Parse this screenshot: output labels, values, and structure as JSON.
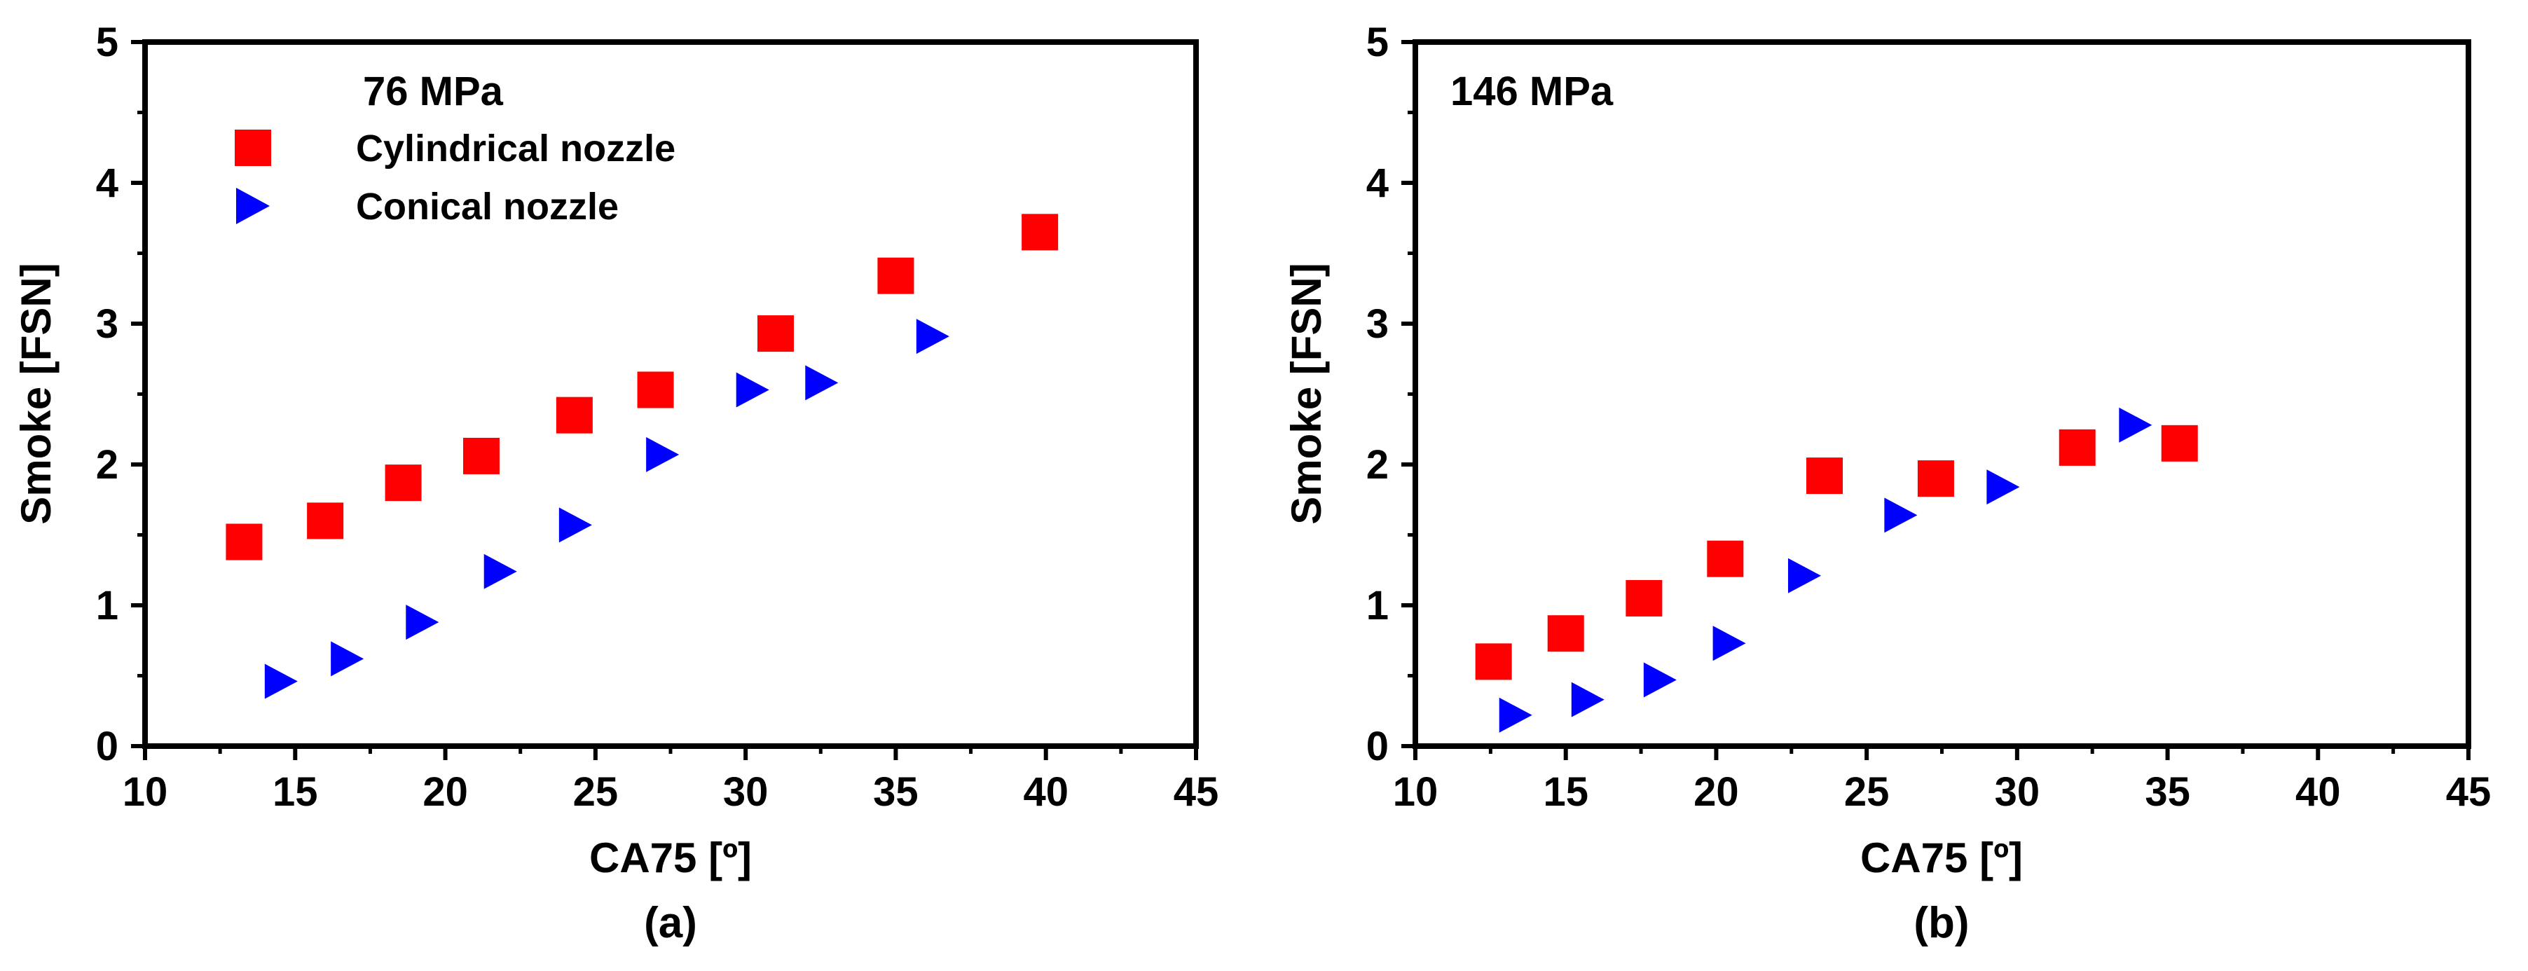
{
  "chart_data": [
    {
      "type": "scatter",
      "panel_label": "(a)",
      "title": "76 MPa",
      "xlabel": "CA75  [º]",
      "ylabel": "Smoke [FSN]",
      "xlim": [
        10,
        45
      ],
      "ylim": [
        0,
        5
      ],
      "xticks": [
        "10",
        "15",
        "20",
        "25",
        "30",
        "35",
        "40",
        "45"
      ],
      "yticks": [
        "0",
        "1",
        "2",
        "3",
        "4",
        "5"
      ],
      "legend": {
        "placement": "top-left",
        "entries": [
          "Cylindrical nozzle",
          "Conical nozzle"
        ]
      },
      "series": [
        {
          "name": "Cylindrical nozzle",
          "marker": "square",
          "color": "#ff0000",
          "x": [
            13.3,
            16.0,
            18.6,
            21.2,
            24.3,
            27.0,
            31.0,
            35.0,
            39.8
          ],
          "y": [
            1.45,
            1.6,
            1.87,
            2.06,
            2.35,
            2.53,
            2.93,
            3.34,
            3.65
          ]
        },
        {
          "name": "Conical nozzle",
          "marker": "triangle-right",
          "color": "#0000ff",
          "x": [
            14.5,
            16.7,
            19.2,
            21.8,
            24.3,
            27.2,
            30.2,
            32.5,
            36.2
          ],
          "y": [
            0.46,
            0.62,
            0.88,
            1.24,
            1.57,
            2.07,
            2.53,
            2.58,
            2.91
          ]
        }
      ]
    },
    {
      "type": "scatter",
      "panel_label": "(b)",
      "title": "146 MPa",
      "xlabel": "CA75  [º]",
      "ylabel": "Smoke [FSN]",
      "xlim": [
        10,
        45
      ],
      "ylim": [
        0,
        5
      ],
      "xticks": [
        "10",
        "15",
        "20",
        "25",
        "30",
        "35",
        "40",
        "45"
      ],
      "yticks": [
        "0",
        "1",
        "2",
        "3",
        "4",
        "5"
      ],
      "series": [
        {
          "name": "Cylindrical nozzle",
          "marker": "square",
          "color": "#ff0000",
          "x": [
            12.6,
            15.0,
            17.6,
            20.3,
            23.6,
            27.3,
            32.0,
            35.4
          ],
          "y": [
            0.6,
            0.8,
            1.05,
            1.33,
            1.92,
            1.9,
            2.12,
            2.15
          ]
        },
        {
          "name": "Conical nozzle",
          "marker": "triangle-right",
          "color": "#0000ff",
          "x": [
            13.3,
            15.7,
            18.1,
            20.4,
            22.9,
            26.1,
            29.5,
            33.9
          ],
          "y": [
            0.22,
            0.33,
            0.47,
            0.73,
            1.21,
            1.64,
            1.84,
            2.28
          ]
        }
      ]
    }
  ]
}
